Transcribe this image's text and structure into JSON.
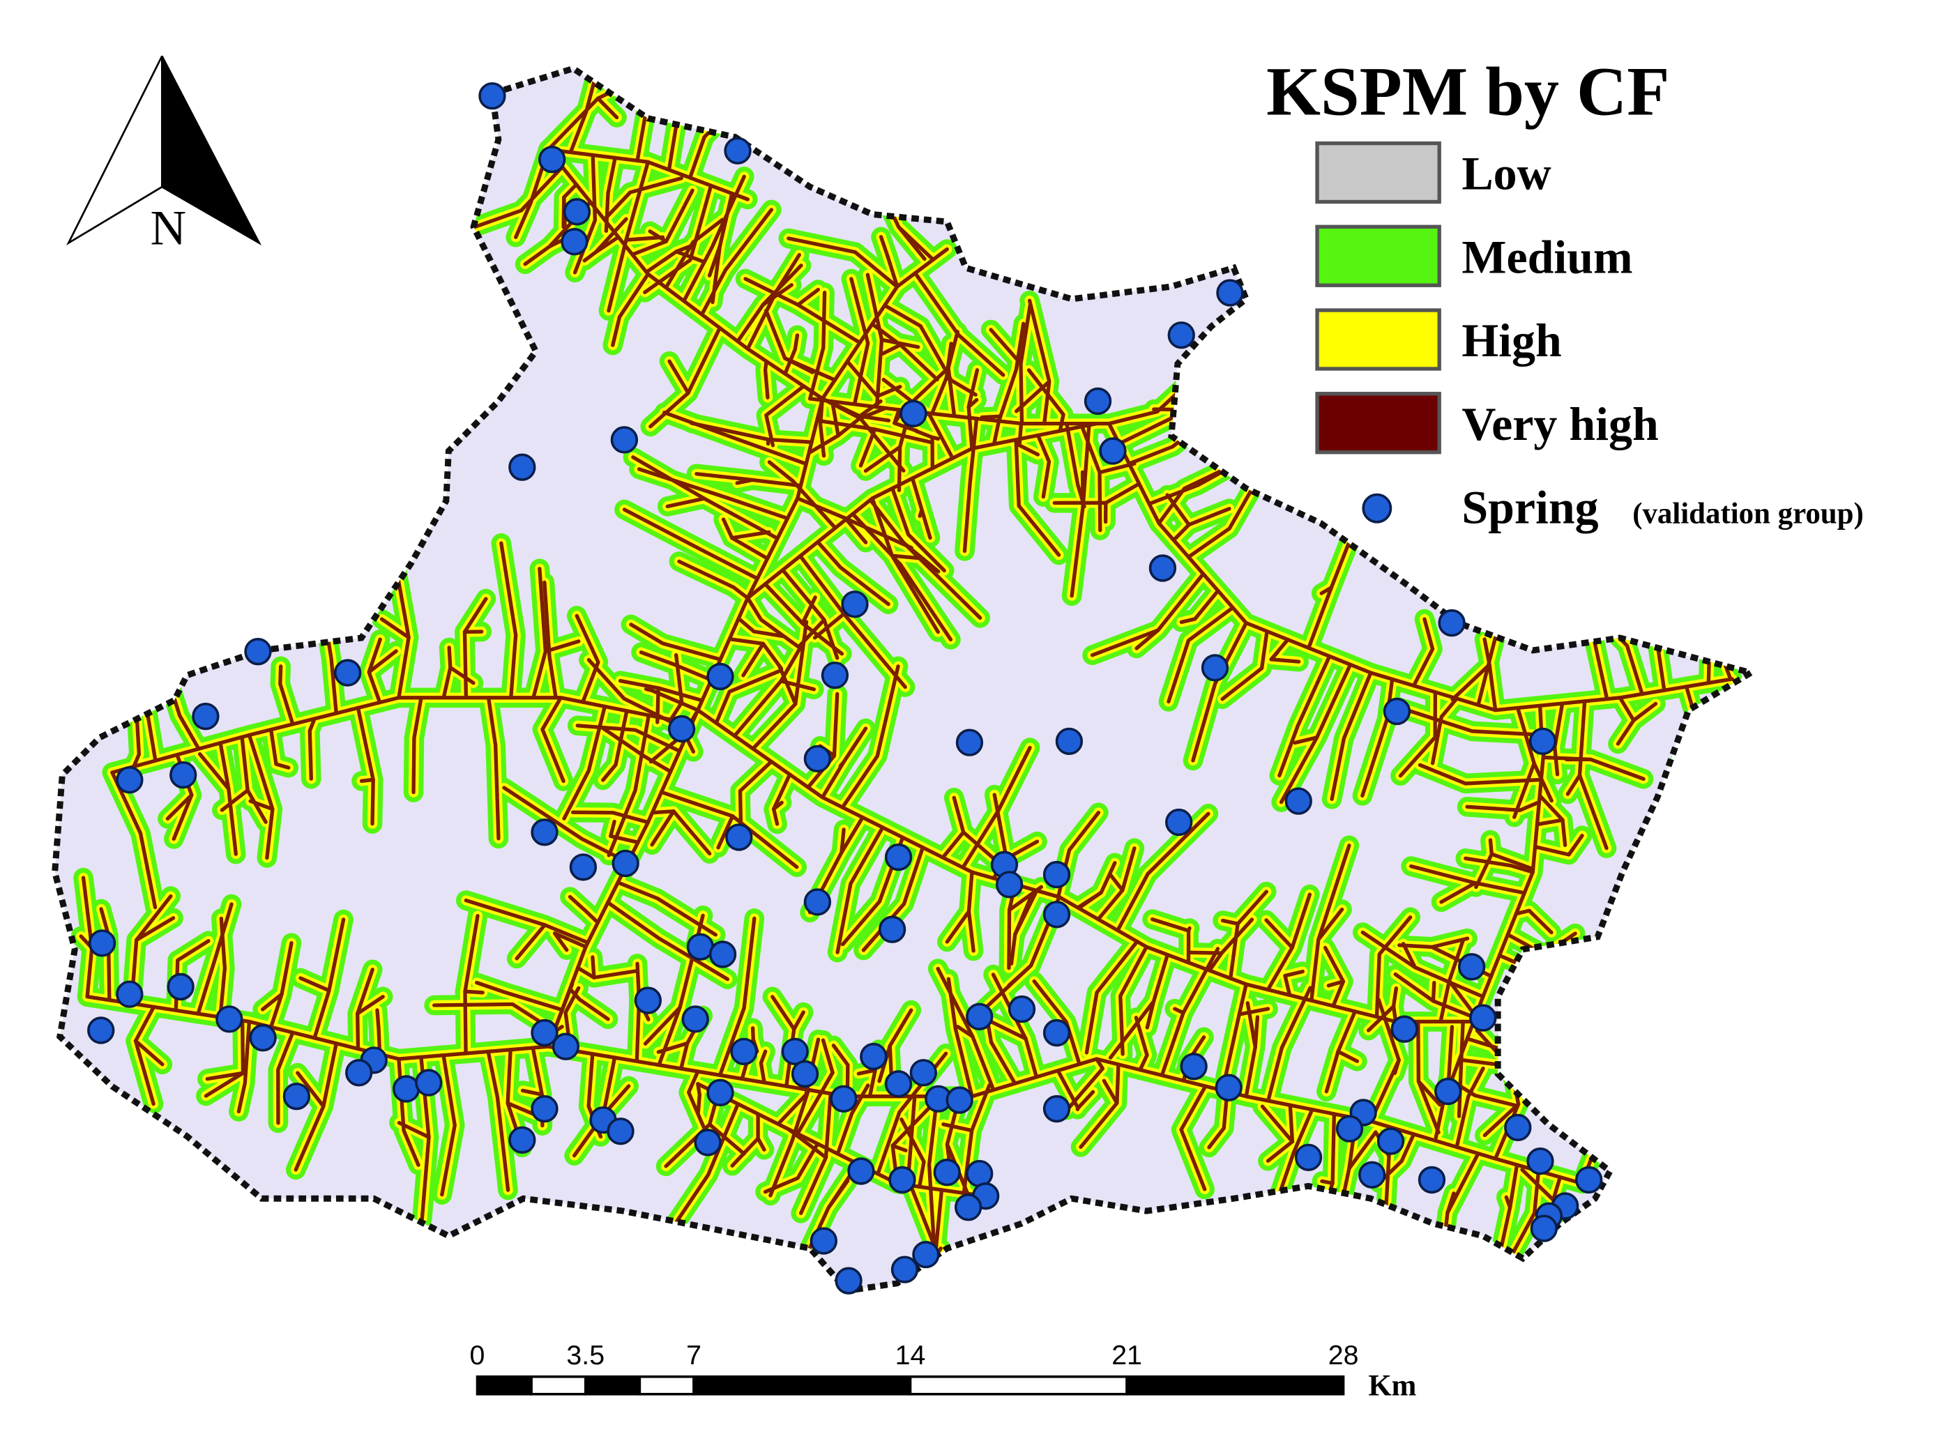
{
  "map": {
    "title": "KSPM by CF",
    "north_label": "N",
    "legend": [
      {
        "label": "Low",
        "color": "#c8c8c8"
      },
      {
        "label": "Medium",
        "color": "#55f511"
      },
      {
        "label": "High",
        "color": "#ffff00"
      },
      {
        "label": "Very high",
        "color": "#6b0000"
      }
    ],
    "spring": {
      "label": "Spring",
      "note": "(validation group)",
      "color": "#1e5fd8"
    },
    "scale_bar": {
      "ticks": [
        0,
        3.5,
        7,
        14,
        21,
        28
      ],
      "unit": "Km"
    }
  }
}
